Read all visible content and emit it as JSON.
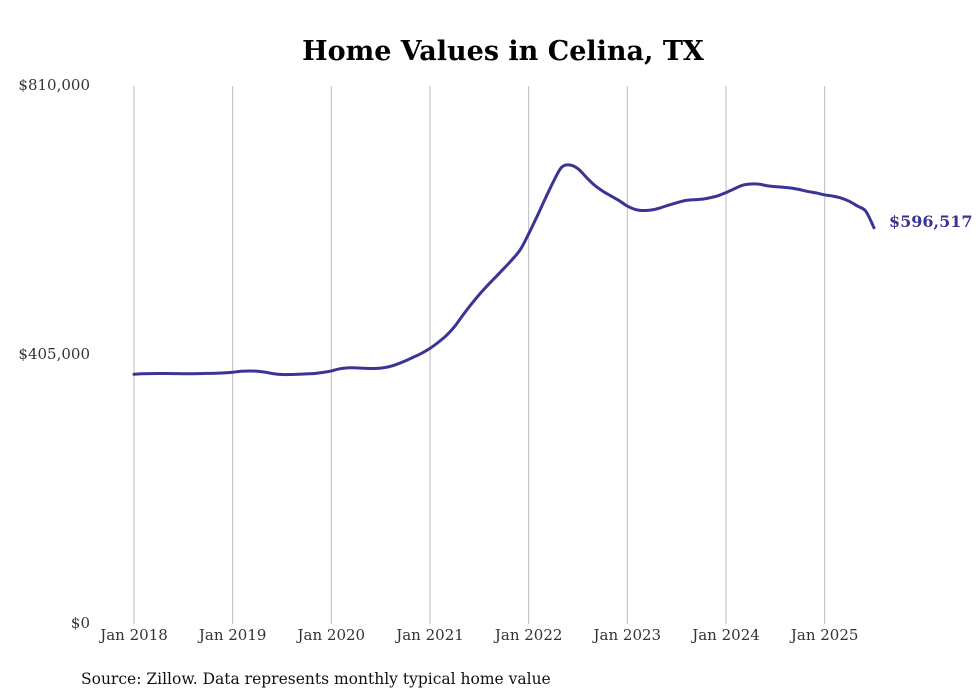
{
  "chart_data": {
    "type": "line",
    "title": "Home Values in Celina, TX",
    "xlabel": "",
    "ylabel": "",
    "ylim": [
      0,
      810000
    ],
    "yticks": [
      {
        "value": 0,
        "label": "$0"
      },
      {
        "value": 405000,
        "label": "$405,000"
      },
      {
        "value": 810000,
        "label": "$810,000"
      }
    ],
    "xlim": [
      "2018-01",
      "2025-07"
    ],
    "xticks": [
      {
        "date": "2018-01",
        "label": "Jan 2018"
      },
      {
        "date": "2019-01",
        "label": "Jan 2019"
      },
      {
        "date": "2020-01",
        "label": "Jan 2020"
      },
      {
        "date": "2021-01",
        "label": "Jan 2021"
      },
      {
        "date": "2022-01",
        "label": "Jan 2022"
      },
      {
        "date": "2023-01",
        "label": "Jan 2023"
      },
      {
        "date": "2024-01",
        "label": "Jan 2024"
      },
      {
        "date": "2025-01",
        "label": "Jan 2025"
      }
    ],
    "grid": {
      "vertical": true,
      "horizontal": false
    },
    "line_color": "#3a3593",
    "end_label": "$596,517",
    "series": [
      {
        "x": [
          "2018-01",
          "2018-02",
          "2018-03",
          "2018-04",
          "2018-05",
          "2018-06",
          "2018-07",
          "2018-08",
          "2018-09",
          "2018-10",
          "2018-11",
          "2018-12",
          "2019-01",
          "2019-02",
          "2019-03",
          "2019-04",
          "2019-05",
          "2019-06",
          "2019-07",
          "2019-08",
          "2019-09",
          "2019-10",
          "2019-11",
          "2019-12",
          "2020-01",
          "2020-02",
          "2020-03",
          "2020-04",
          "2020-05",
          "2020-06",
          "2020-07",
          "2020-08",
          "2020-09",
          "2020-10",
          "2020-11",
          "2020-12",
          "2021-01",
          "2021-02",
          "2021-03",
          "2021-04",
          "2021-05",
          "2021-06",
          "2021-07",
          "2021-08",
          "2021-09",
          "2021-10",
          "2021-11",
          "2021-12",
          "2022-01",
          "2022-02",
          "2022-03",
          "2022-04",
          "2022-05",
          "2022-06",
          "2022-07",
          "2022-08",
          "2022-09",
          "2022-10",
          "2022-11",
          "2022-12",
          "2023-01",
          "2023-02",
          "2023-03",
          "2023-04",
          "2023-05",
          "2023-06",
          "2023-07",
          "2023-08",
          "2023-09",
          "2023-10",
          "2023-11",
          "2023-12",
          "2024-01",
          "2024-02",
          "2024-03",
          "2024-04",
          "2024-05",
          "2024-06",
          "2024-07",
          "2024-08",
          "2024-09",
          "2024-10",
          "2024-11",
          "2024-12",
          "2025-01",
          "2025-02",
          "2025-03",
          "2025-04",
          "2025-05",
          "2025-06",
          "2025-07"
        ],
        "values": [
          376000,
          376800,
          377000,
          377200,
          377200,
          377000,
          376800,
          376800,
          377000,
          377300,
          377600,
          378000,
          379000,
          380500,
          381000,
          380500,
          379000,
          376800,
          375600,
          375600,
          376000,
          376600,
          377200,
          378800,
          381000,
          384200,
          385600,
          385600,
          385000,
          384600,
          385200,
          387300,
          391200,
          396200,
          401800,
          407800,
          415000,
          424000,
          434400,
          448000,
          465000,
          481200,
          496100,
          509700,
          522500,
          535500,
          548800,
          564000,
          587400,
          613100,
          640000,
          665800,
          687500,
          691000,
          685400,
          672800,
          660700,
          651800,
          644500,
          637500,
          629200,
          624000,
          622500,
          623500,
          626500,
          630600,
          634200,
          637400,
          638700,
          639500,
          641600,
          644600,
          649500,
          655200,
          660500,
          662400,
          662200,
          659800,
          658500,
          657500,
          656300,
          654000,
          651100,
          649000,
          646000,
          644200,
          641300,
          636400,
          629200,
          621400,
          596517
        ]
      }
    ]
  },
  "source_note": "Source: Zillow. Data represents monthly typical home value"
}
